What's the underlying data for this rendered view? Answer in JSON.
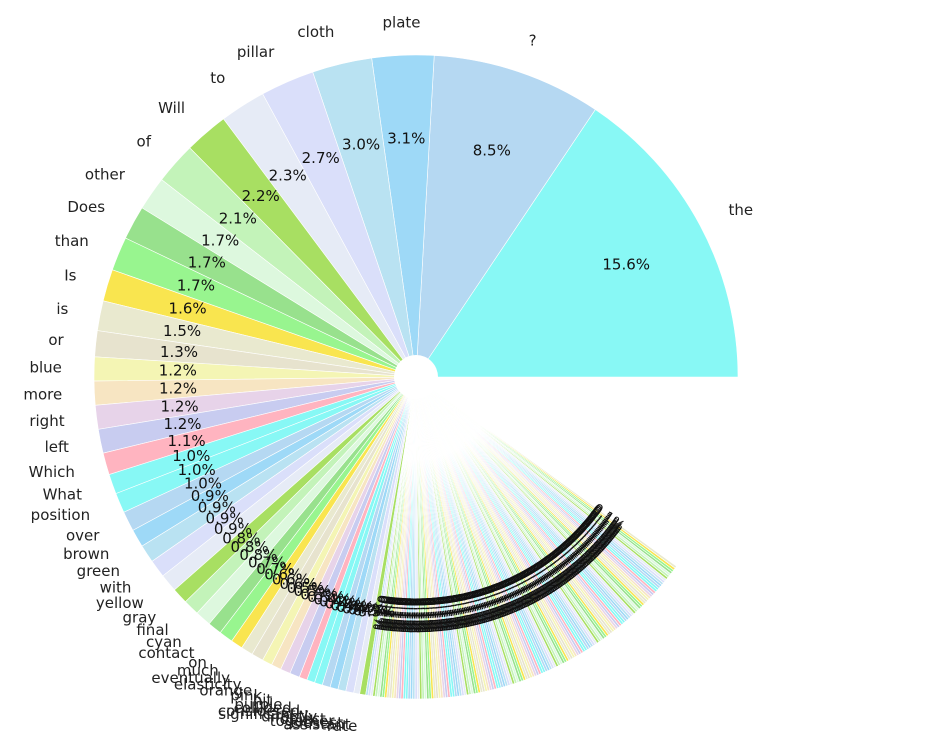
{
  "chart_data": {
    "type": "pie",
    "note_colors": "pastel palette cycling",
    "colors": [
      "#88F8F5",
      "#B5D8F2",
      "#9ED9F7",
      "#B9E2F2",
      "#DADFFA",
      "#E6EBF6",
      "#A8DF62",
      "#C3F3B9",
      "#DDF8DE",
      "#98E18D",
      "#98F58F",
      "#F9E54F",
      "#E9E9CF",
      "#E7E3CE",
      "#F4F5B4",
      "#F7E5C2",
      "#E7D3E9",
      "#C8CCF0",
      "#FFB4C0",
      "#87F8F5"
    ],
    "labels": [
      "the",
      "?",
      "plate",
      "cloth",
      "pillar",
      "to",
      "Will",
      "of",
      "other",
      "Does",
      "than",
      "Is",
      "is",
      "or",
      "blue",
      "more",
      "right",
      "left",
      "Which",
      "What",
      "position",
      "over",
      "brown",
      "green",
      "with",
      "yellow",
      "gray",
      "final",
      "cyan",
      "contact",
      "on",
      "much",
      "eventually",
      "elasticity",
      "orange",
      "pink",
      "hit",
      "purple",
      "collided",
      "considered",
      "significantly",
      "directly",
      "object",
      "together",
      "closest",
      "assistant",
      "rate"
    ],
    "values": [
      15.6,
      8.5,
      3.1,
      3.0,
      2.7,
      2.3,
      2.2,
      2.1,
      1.7,
      1.7,
      1.7,
      1.6,
      1.5,
      1.3,
      1.2,
      1.2,
      1.2,
      1.2,
      1.1,
      1.0,
      1.0,
      1.0,
      0.9,
      0.9,
      0.9,
      0.9,
      0.8,
      0.8,
      0.8,
      0.7,
      0.7,
      0.6,
      0.6,
      0.6,
      0.5,
      0.5,
      0.5,
      0.5,
      0.4,
      0.4,
      0.4,
      0.4,
      0.4,
      0.4,
      0.4,
      0.3,
      0.3
    ],
    "pct_labels": [
      "15.6%",
      "8.5%",
      "3.1%",
      "3.0%",
      "2.7%",
      "2.3%",
      "2.2%",
      "2.1%",
      "1.7%",
      "1.7%",
      "1.7%",
      "1.6%",
      "1.5%",
      "1.3%",
      "1.2%",
      "1.2%",
      "1.2%",
      "1.2%",
      "1.1%",
      "1.0%",
      "1.0%",
      "1.0%",
      "0.9%",
      "0.9%",
      "0.9%",
      "0.9%",
      "0.8%",
      "0.8%",
      "0.8%",
      "0.7%",
      "0.7%",
      "0.6%",
      "0.6%",
      "0.6%",
      "0.5%",
      "0.5%",
      "0.5%",
      "0.5%",
      "0.4%",
      "0.4%",
      "0.4%",
      "0.4%",
      "0.4%",
      "0.4%",
      "0.4%",
      "0.3%",
      "0.3%"
    ],
    "remaining_share_percent": 17.5,
    "remaining_slice_count": 150,
    "remaining_pct_text": "0.1%",
    "start_angle_deg": 0,
    "direction": "counterclockwise",
    "donut_hole": true
  }
}
